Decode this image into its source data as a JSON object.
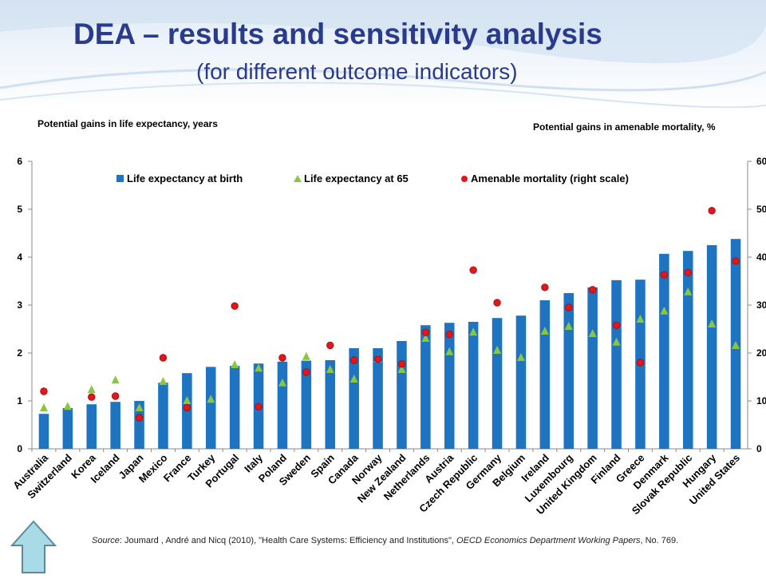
{
  "title": "DEA – results and sensitivity analysis",
  "subtitle": "(for different outcome indicators)",
  "left_axis_title": "Potential gains in life expectancy, years",
  "right_axis_title": "Potential gains in amenable mortality, %",
  "source": {
    "label": "Source",
    "text_before": ": Joumard , André and Nicq (2010), \"Health Care Systems: Efficiency and Institutions\", ",
    "journal": "OECD Economics Department Working Papers",
    "text_after": ", No. 769."
  },
  "nav": {
    "icon": "up-arrow-icon"
  },
  "colors": {
    "bar": "#1f74c2",
    "triangle": "#8cc640",
    "circle": "#e3161b",
    "title": "#2a3a8c"
  },
  "chart_data": {
    "type": "bar",
    "categories": [
      "Australia",
      "Switzerland",
      "Korea",
      "Iceland",
      "Japan",
      "Mexico",
      "France",
      "Turkey",
      "Portugal",
      "Italy",
      "Poland",
      "Sweden",
      "Spain",
      "Canada",
      "Norway",
      "New Zealand",
      "Netherlands",
      "Austria",
      "Czech Republic",
      "Germany",
      "Belgium",
      "Ireland",
      "Luxembourg",
      "United Kingdom",
      "Finland",
      "Greece",
      "Denmark",
      "Slovak Republic",
      "Hungary",
      "United States"
    ],
    "series": [
      {
        "name": "Life expectancy at birth",
        "type": "bar",
        "axis": "left",
        "values": [
          0.73,
          0.85,
          0.93,
          0.98,
          1.0,
          1.38,
          1.58,
          1.71,
          1.73,
          1.78,
          1.82,
          1.84,
          1.85,
          2.1,
          2.1,
          2.25,
          2.58,
          2.63,
          2.65,
          2.73,
          2.78,
          3.1,
          3.25,
          3.37,
          3.52,
          3.53,
          4.07,
          4.13,
          4.25,
          4.38
        ]
      },
      {
        "name": "Life expectancy at 65",
        "type": "scatter",
        "marker": "triangle",
        "axis": "left",
        "values": [
          0.85,
          0.88,
          1.23,
          1.43,
          0.85,
          1.4,
          1.0,
          1.03,
          1.75,
          1.68,
          1.37,
          1.92,
          1.65,
          1.45,
          1.87,
          1.65,
          2.3,
          2.02,
          2.43,
          2.05,
          1.9,
          2.45,
          2.55,
          2.4,
          2.22,
          2.7,
          2.87,
          3.27,
          2.6,
          2.15
        ]
      },
      {
        "name": "Amenable mortality (right scale)",
        "type": "scatter",
        "marker": "circle",
        "axis": "right",
        "values": [
          12,
          null,
          10.8,
          11,
          6.5,
          19,
          8.6,
          null,
          29.8,
          8.8,
          19,
          16,
          21.6,
          18.5,
          18.7,
          17.7,
          24.3,
          23.9,
          37.3,
          30.5,
          null,
          33.7,
          29.5,
          33.2,
          25.8,
          18,
          36.3,
          36.8,
          49.7,
          39.2
        ]
      }
    ],
    "ylim_left": [
      0,
      6
    ],
    "yticks_left": [
      0,
      1,
      2,
      3,
      4,
      5,
      6
    ],
    "ylim_right": [
      0,
      60
    ],
    "yticks_right": [
      "0",
      "10",
      "20",
      "30",
      "40",
      "50",
      "60"
    ],
    "legend_placement": "top",
    "grid": false
  }
}
